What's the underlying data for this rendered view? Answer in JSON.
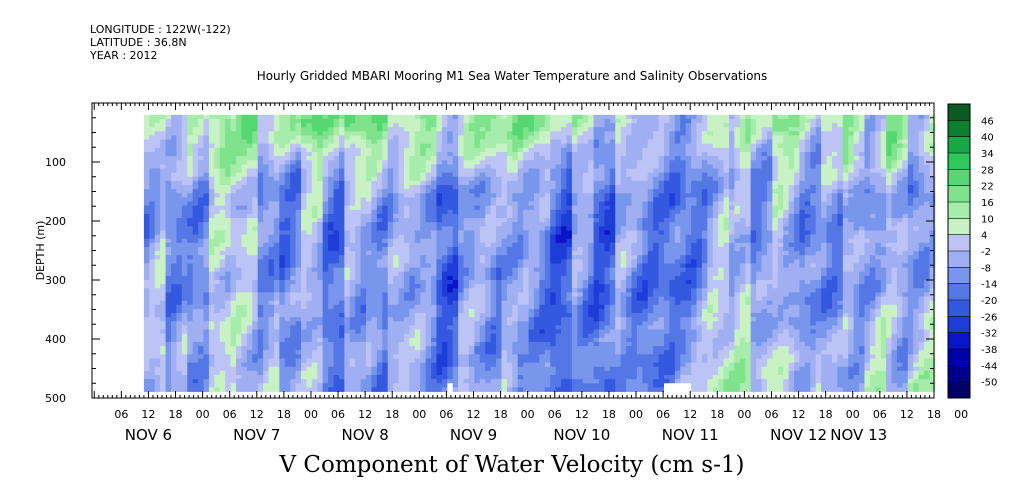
{
  "header": {
    "longitude": "LONGITUDE : 122W(-122)",
    "latitude": "LATITUDE : 36.8N",
    "year": "YEAR : 2012"
  },
  "chart_data": {
    "type": "heatmap",
    "title": "Hourly Gridded MBARI Mooring M1 Sea Water Temperature and Salinity Observations",
    "caption": "V Component of Water Velocity (cm s-1)",
    "ylabel": "DEPTH (m)",
    "x_range_hours_from_nov6_00": [
      -0.5,
      186
    ],
    "data_x_range_hours_from_nov6_00": [
      11,
      185
    ],
    "ylim": [
      500,
      0
    ],
    "data_depth_range_m": [
      20,
      485
    ],
    "y_ticks": [
      100,
      200,
      300,
      400,
      500
    ],
    "y_tick_labels": [
      "100",
      "200",
      "300",
      "400",
      "500"
    ],
    "x_hour_labels": [
      "06",
      "12",
      "18",
      "00",
      "06",
      "12",
      "18",
      "00",
      "06",
      "12",
      "18",
      "00",
      "06",
      "12",
      "18",
      "00",
      "06",
      "12",
      "18",
      "00",
      "06",
      "12",
      "18",
      "00",
      "06",
      "12",
      "18",
      "00",
      "06",
      "12",
      "18",
      "00"
    ],
    "x_day_labels": [
      "NOV 6",
      "NOV 7",
      "NOV 8",
      "NOV 9",
      "NOV 10",
      "NOV 11",
      "NOV 12",
      "NOV 13"
    ],
    "colorbar": {
      "levels": [
        -50,
        -44,
        -38,
        -32,
        -26,
        -20,
        -14,
        -8,
        -2,
        4,
        10,
        16,
        22,
        28,
        34,
        40,
        46
      ],
      "labels": [
        "46",
        "40",
        "34",
        "28",
        "22",
        "16",
        "10",
        "4",
        "-2",
        "-8",
        "-14",
        "-20",
        "-26",
        "-32",
        "-38",
        "-44",
        "-50"
      ],
      "colors_low_to_high": [
        "#000066",
        "#00008a",
        "#0000aa",
        "#0a14c8",
        "#1e3cd8",
        "#3558e0",
        "#5577e6",
        "#7896ec",
        "#a0aef2",
        "#bcc3f5",
        "#c9f2c4",
        "#a6ecaa",
        "#7ee38c",
        "#55d872",
        "#30c85a",
        "#16a844",
        "#0a8030",
        "#0a5a22"
      ]
    },
    "day_means_cm_s": [
      {
        "day": "NOV 6",
        "near_surface": 8,
        "mid_depth": -6,
        "deep": -4
      },
      {
        "day": "NOV 7",
        "near_surface": 14,
        "mid_depth": -5,
        "deep": -3
      },
      {
        "day": "NOV 8",
        "near_surface": 18,
        "mid_depth": -10,
        "deep": -8
      },
      {
        "day": "NOV 9",
        "near_surface": 8,
        "mid_depth": -14,
        "deep": -8
      },
      {
        "day": "NOV 10",
        "near_surface": 10,
        "mid_depth": -16,
        "deep": -14
      },
      {
        "day": "NOV 11",
        "near_surface": -4,
        "mid_depth": -12,
        "deep": -8
      },
      {
        "day": "NOV 12",
        "near_surface": 10,
        "mid_depth": -6,
        "deep": 4
      }
    ],
    "missing_segments": [
      {
        "hours": [
          77.5,
          79
        ],
        "depth_m": [
          470,
          485
        ]
      },
      {
        "hours": [
          126,
          132
        ],
        "depth_m": [
          470,
          485
        ]
      }
    ]
  }
}
